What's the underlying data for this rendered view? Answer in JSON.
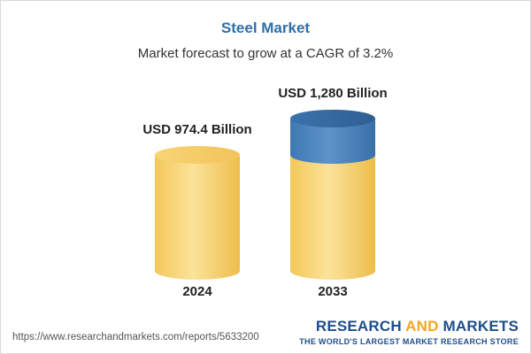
{
  "header": {
    "title": "Steel Market",
    "subtitle": "Market forecast to grow at a CAGR of 3.2%"
  },
  "chart_data": {
    "type": "bar",
    "title": "Steel Market",
    "subtitle": "Market forecast to grow at a CAGR of 3.2%",
    "categories": [
      "2024",
      "2033"
    ],
    "values": [
      974.4,
      1280
    ],
    "data_labels": [
      "USD 974.4 Billion",
      "USD 1,280 Billion"
    ],
    "unit": "USD Billion",
    "style": "3d-cylinder",
    "growth_highlight_color": "#4a84bd",
    "base_color": "#f6d06a",
    "grid": false,
    "legend": "none"
  },
  "footer": {
    "source_url": "https://www.researchandmarkets.com/reports/5633200",
    "brand_word1": "RESEARCH",
    "brand_word2": "AND",
    "brand_word3": "MARKETS",
    "brand_tagline": "THE WORLD'S LARGEST MARKET RESEARCH STORE"
  },
  "colors": {
    "title": "#2f6fa7",
    "brand_blue": "#1f4e8a",
    "brand_orange": "#f0a81e"
  }
}
